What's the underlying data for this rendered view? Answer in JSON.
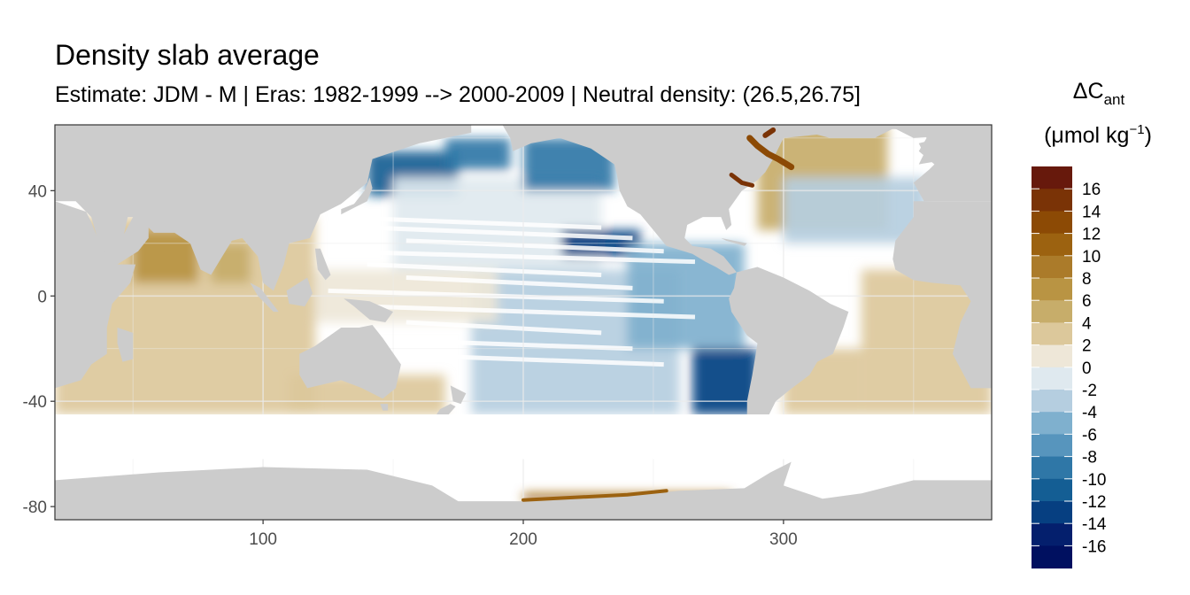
{
  "title": "Density slab average",
  "subtitle": "Estimate: JDM - M | Eras: 1982-1999 --> 2000-2009 | Neutral density: (26.5,26.75]",
  "legend": {
    "symbol_prefix": "ΔC",
    "symbol_sub": "ant",
    "unit_open": "(μmol kg",
    "unit_sup": "−1",
    "unit_close": ")",
    "labels": [
      "16",
      "14",
      "12",
      "10",
      "8",
      "6",
      "4",
      "2",
      "0",
      "-2",
      "-4",
      "-6",
      "-8",
      "-10",
      "-12",
      "-14",
      "-16"
    ],
    "colors": [
      "#67190c",
      "#7a3306",
      "#8c4a05",
      "#9c6210",
      "#ab7b2a",
      "#b99443",
      "#c7ad6a",
      "#dcc89b",
      "#eee7d8",
      "#dfe9ef",
      "#b5cee0",
      "#7fb0ce",
      "#5795bd",
      "#2f77a7",
      "#145e94",
      "#063f81",
      "#041f6d",
      "#001060"
    ]
  },
  "colors": {
    "land": "#cccccc",
    "no_data": "#ffffff",
    "grid": "#ebebeb",
    "frame": "#333333"
  },
  "chart_data": {
    "type": "heatmap",
    "title": "Density slab average",
    "subtitle": "Estimate: JDM - M | Eras: 1982-1999 --> 2000-2009 | Neutral density: (26.5,26.75]",
    "xlabel": "",
    "ylabel": "",
    "xlim": [
      20,
      380
    ],
    "ylim": [
      -85,
      65
    ],
    "x_ticks": [
      100,
      200,
      300
    ],
    "y_ticks": [
      40,
      0,
      -40,
      -80
    ],
    "grid": true,
    "legend_position": "right",
    "value_label": "ΔCant (μmol kg−1)",
    "value_breaks": [
      16,
      14,
      12,
      10,
      8,
      6,
      4,
      2,
      0,
      -2,
      -4,
      -6,
      -8,
      -10,
      -12,
      -14,
      -16
    ],
    "cells": [
      {
        "lon": [
          20,
          120
        ],
        "lat": [
          -45,
          30
        ],
        "value": 3,
        "note": "Indian Ocean"
      },
      {
        "lon": [
          50,
          75
        ],
        "lat": [
          5,
          25
        ],
        "value": 7
      },
      {
        "lon": [
          80,
          95
        ],
        "lat": [
          5,
          20
        ],
        "value": 6
      },
      {
        "lon": [
          110,
          170
        ],
        "lat": [
          -45,
          -30
        ],
        "value": 4
      },
      {
        "lon": [
          140,
          175
        ],
        "lat": [
          38,
          55
        ],
        "value": -10
      },
      {
        "lon": [
          150,
          230
        ],
        "lat": [
          10,
          45
        ],
        "value": 0
      },
      {
        "lon": [
          170,
          195
        ],
        "lat": [
          48,
          60
        ],
        "value": -8
      },
      {
        "lon": [
          200,
          235
        ],
        "lat": [
          40,
          60
        ],
        "value": -8
      },
      {
        "lon": [
          215,
          245
        ],
        "lat": [
          15,
          25
        ],
        "value": -12
      },
      {
        "lon": [
          180,
          260
        ],
        "lat": [
          -45,
          10
        ],
        "value": -3
      },
      {
        "lon": [
          240,
          285
        ],
        "lat": [
          -20,
          20
        ],
        "value": -5
      },
      {
        "lon": [
          265,
          290
        ],
        "lat": [
          -45,
          -20
        ],
        "value": -12
      },
      {
        "lon": [
          120,
          190
        ],
        "lat": [
          -10,
          10
        ],
        "value": 1
      },
      {
        "lon": [
          290,
          340
        ],
        "lat": [
          25,
          65
        ],
        "value": 6
      },
      {
        "lon": [
          300,
          355
        ],
        "lat": [
          20,
          45
        ],
        "value": -3
      },
      {
        "lon": [
          330,
          380
        ],
        "lat": [
          -45,
          10
        ],
        "value": 4
      },
      {
        "lon": [
          300,
          330
        ],
        "lat": [
          -45,
          -20
        ],
        "value": 3
      },
      {
        "lon": [
          200,
          280
        ],
        "lat": [
          -78,
          -75
        ],
        "value": 12
      }
    ]
  }
}
